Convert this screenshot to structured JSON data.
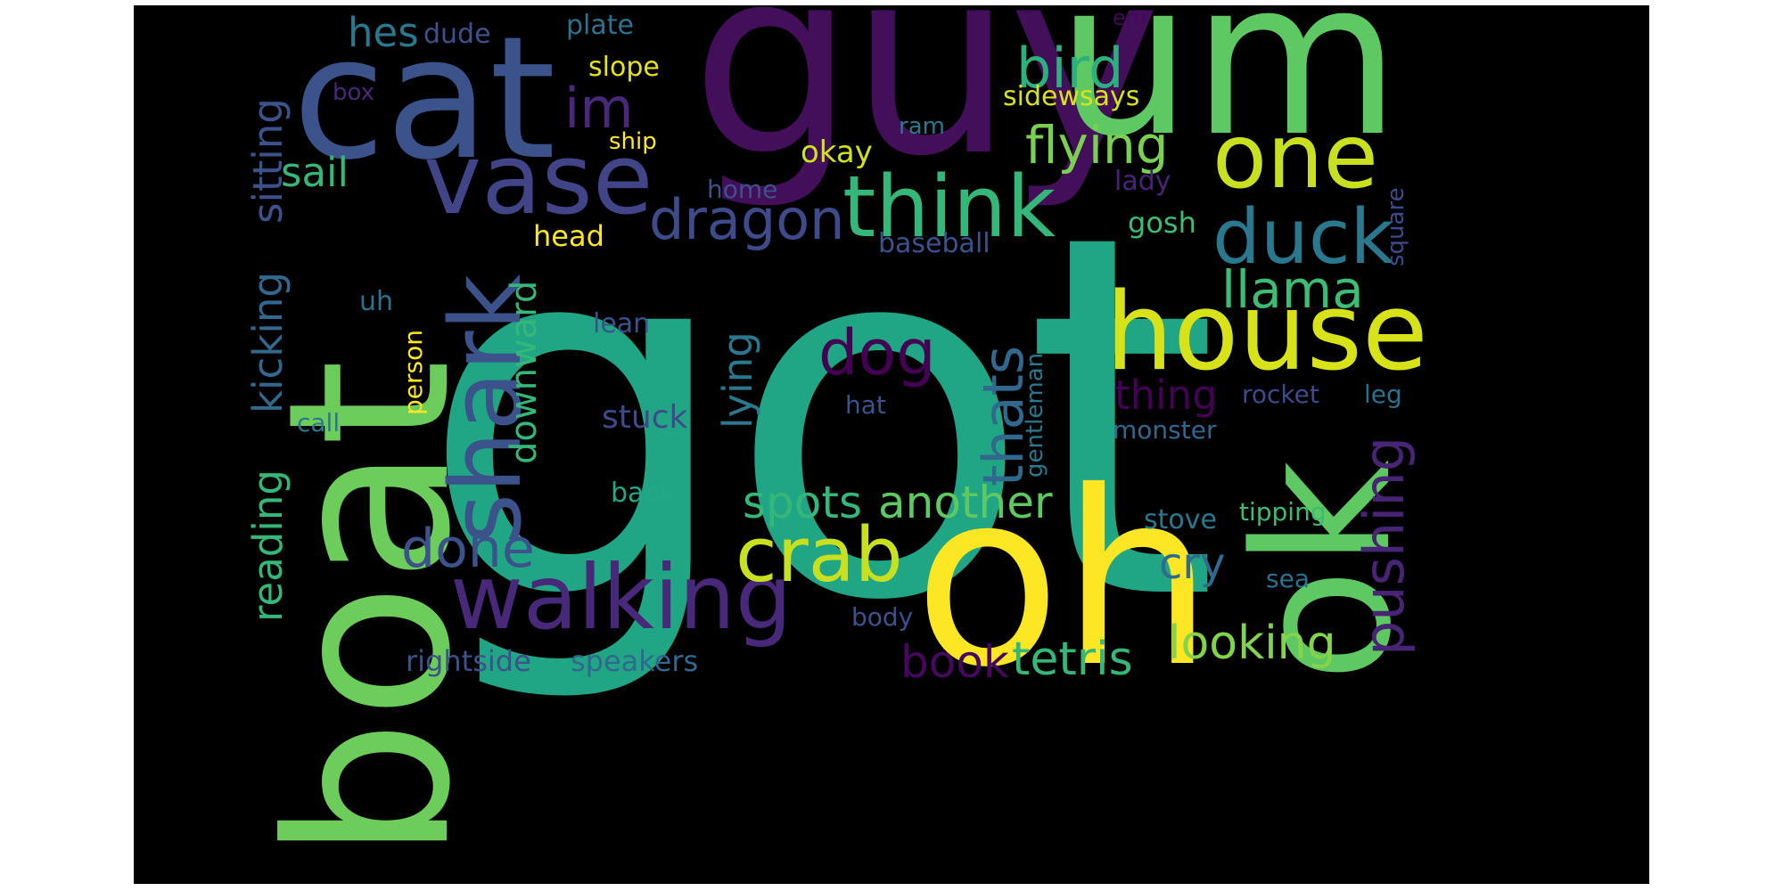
{
  "wordcloud": {
    "background": "#000000",
    "palette": "viridis",
    "words": [
      {
        "text": "got",
        "color": "#21a685"
      },
      {
        "text": "guy",
        "color": "#440f5a"
      },
      {
        "text": "um",
        "color": "#5ec962"
      },
      {
        "text": "cat",
        "color": "#3b528b"
      },
      {
        "text": "boat",
        "color": "#6ccd5a"
      },
      {
        "text": "oh",
        "color": "#fde725"
      },
      {
        "text": "ok",
        "color": "#5ec962"
      },
      {
        "text": "house",
        "color": "#d8e219"
      },
      {
        "text": "vase",
        "color": "#414487"
      },
      {
        "text": "shark",
        "color": "#3b528b"
      },
      {
        "text": "one",
        "color": "#c8e020"
      },
      {
        "text": "think",
        "color": "#35b779"
      },
      {
        "text": "walking",
        "color": "#482878"
      },
      {
        "text": "duck",
        "color": "#2a788e"
      },
      {
        "text": "crab",
        "color": "#c8e020"
      },
      {
        "text": "dragon",
        "color": "#3e4a89"
      },
      {
        "text": "bird",
        "color": "#2cb17e"
      },
      {
        "text": "flying",
        "color": "#7ad151"
      },
      {
        "text": "llama",
        "color": "#3dbc74"
      },
      {
        "text": "im",
        "color": "#482878"
      },
      {
        "text": "dog",
        "color": "#440154"
      },
      {
        "text": "thats",
        "color": "#31688e"
      },
      {
        "text": "pushing",
        "color": "#482475"
      },
      {
        "text": "looking",
        "color": "#84d44b"
      },
      {
        "text": "tetris",
        "color": "#35b779"
      },
      {
        "text": "done",
        "color": "#3b528b"
      },
      {
        "text": "another",
        "color": "#5ec962"
      },
      {
        "text": "spots",
        "color": "#35b779"
      },
      {
        "text": "book",
        "color": "#46085c"
      },
      {
        "text": "thing",
        "color": "#440154"
      },
      {
        "text": "cry",
        "color": "#306a8e"
      },
      {
        "text": "downward",
        "color": "#35b779"
      },
      {
        "text": "lying",
        "color": "#2a788e"
      },
      {
        "text": "kicking",
        "color": "#31688e"
      },
      {
        "text": "reading",
        "color": "#35b779"
      },
      {
        "text": "sitting",
        "color": "#3b528b"
      },
      {
        "text": "sail",
        "color": "#35b779"
      },
      {
        "text": "hes",
        "color": "#2a788e"
      },
      {
        "text": "dude",
        "color": "#3b528b"
      },
      {
        "text": "plate",
        "color": "#2c728e"
      },
      {
        "text": "slope",
        "color": "#e5e419"
      },
      {
        "text": "box",
        "color": "#482878"
      },
      {
        "text": "ship",
        "color": "#fde725"
      },
      {
        "text": "okay",
        "color": "#d2e21b"
      },
      {
        "text": "home",
        "color": "#3b528b"
      },
      {
        "text": "head",
        "color": "#fde725"
      },
      {
        "text": "em",
        "color": "#46085c"
      },
      {
        "text": "sidewsays",
        "color": "#d8e219"
      },
      {
        "text": "ram",
        "color": "#2a788e"
      },
      {
        "text": "lady",
        "color": "#482475"
      },
      {
        "text": "gosh",
        "color": "#3dbc74"
      },
      {
        "text": "square",
        "color": "#3e4a89"
      },
      {
        "text": "baseball",
        "color": "#3b528b"
      },
      {
        "text": "uh",
        "color": "#2c728e"
      },
      {
        "text": "person",
        "color": "#fde725"
      },
      {
        "text": "lean",
        "color": "#3b528b"
      },
      {
        "text": "stuck",
        "color": "#3e4a89"
      },
      {
        "text": "hat",
        "color": "#3b528b"
      },
      {
        "text": "call",
        "color": "#2a788e"
      },
      {
        "text": "gentleman",
        "color": "#2a788e"
      },
      {
        "text": "rocket",
        "color": "#3e4a89"
      },
      {
        "text": "leg",
        "color": "#2c728e"
      },
      {
        "text": "monster",
        "color": "#31688e"
      },
      {
        "text": "stove",
        "color": "#2a788e"
      },
      {
        "text": "tipping",
        "color": "#3dbc74"
      },
      {
        "text": "back",
        "color": "#22a884"
      },
      {
        "text": "sea",
        "color": "#2c728e"
      },
      {
        "text": "body",
        "color": "#3b528b"
      },
      {
        "text": "rightside",
        "color": "#3b528b"
      },
      {
        "text": "speakers",
        "color": "#31688e"
      }
    ]
  }
}
